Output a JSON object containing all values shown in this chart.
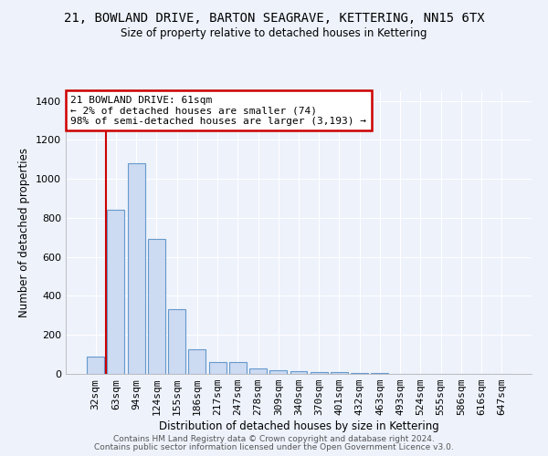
{
  "title": "21, BOWLAND DRIVE, BARTON SEAGRAVE, KETTERING, NN15 6TX",
  "subtitle": "Size of property relative to detached houses in Kettering",
  "xlabel": "Distribution of detached houses by size in Kettering",
  "ylabel": "Number of detached properties",
  "bar_labels": [
    "32sqm",
    "63sqm",
    "94sqm",
    "124sqm",
    "155sqm",
    "186sqm",
    "217sqm",
    "247sqm",
    "278sqm",
    "309sqm",
    "340sqm",
    "370sqm",
    "401sqm",
    "432sqm",
    "463sqm",
    "493sqm",
    "524sqm",
    "555sqm",
    "586sqm",
    "616sqm",
    "647sqm"
  ],
  "bar_values": [
    90,
    840,
    1080,
    690,
    330,
    125,
    60,
    60,
    30,
    20,
    15,
    10,
    10,
    5,
    3,
    2,
    2,
    1,
    1,
    0,
    0
  ],
  "bar_color": "#ccdaf2",
  "bar_edge_color": "#6699cc",
  "vline_color": "#cc0000",
  "annotation_text": "21 BOWLAND DRIVE: 61sqm\n← 2% of detached houses are smaller (74)\n98% of semi-detached houses are larger (3,193) →",
  "annotation_box_color": "#ffffff",
  "annotation_box_edge": "#cc0000",
  "ylim": [
    0,
    1450
  ],
  "yticks": [
    0,
    200,
    400,
    600,
    800,
    1000,
    1200,
    1400
  ],
  "footer1": "Contains HM Land Registry data © Crown copyright and database right 2024.",
  "footer2": "Contains public sector information licensed under the Open Government Licence v3.0.",
  "bg_color": "#edf2fb",
  "plot_bg_color": "#edf2fb",
  "grid_color": "#ffffff"
}
